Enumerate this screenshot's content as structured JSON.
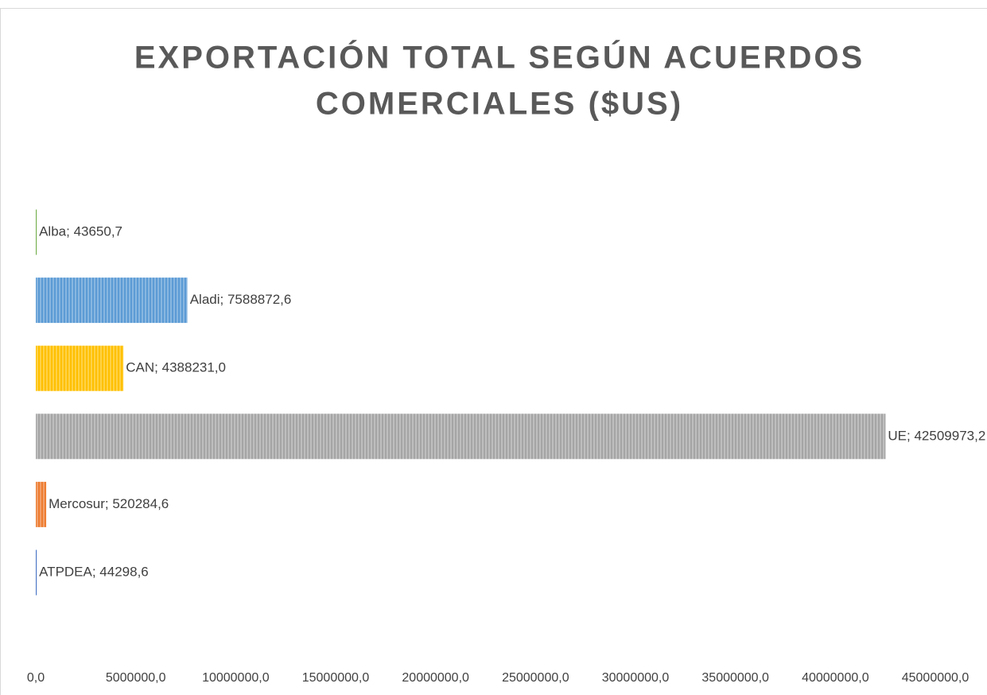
{
  "chart_data": {
    "type": "barh",
    "title": [
      "EXPORTACIÓN TOTAL SEGÚN ACUERDOS",
      "COMERCIALES ($US)"
    ],
    "categories": [
      "Alba",
      "Aladi",
      "CAN",
      "UE",
      "Mercosur",
      "ATPDEA"
    ],
    "values": [
      43650.7,
      7588872.6,
      4388231.0,
      42509973.2,
      520284.6,
      44298.6
    ],
    "value_labels": [
      "Alba; 43650,7",
      "Aladi; 7588872,6",
      "CAN; 4388231,0",
      "UE; 42509973,2",
      "Mercosur; 520284,6",
      "ATPDEA; 44298,6"
    ],
    "colors": [
      "#70ad47",
      "#5b9bd5",
      "#ffc000",
      "#a5a5a5",
      "#ed7d31",
      "#4472c4"
    ],
    "xlim": [
      0,
      45000000
    ],
    "xticks": [
      {
        "value": 0,
        "label": "0,0"
      },
      {
        "value": 5000000,
        "label": "5000000,0"
      },
      {
        "value": 10000000,
        "label": "10000000,0"
      },
      {
        "value": 15000000,
        "label": "15000000,0"
      },
      {
        "value": 20000000,
        "label": "20000000,0"
      },
      {
        "value": 25000000,
        "label": "25000000,0"
      },
      {
        "value": 30000000,
        "label": "30000000,0"
      },
      {
        "value": 35000000,
        "label": "35000000,0"
      },
      {
        "value": 40000000,
        "label": "40000000,0"
      },
      {
        "value": 45000000,
        "label": "45000000,0"
      }
    ],
    "grid": false
  }
}
